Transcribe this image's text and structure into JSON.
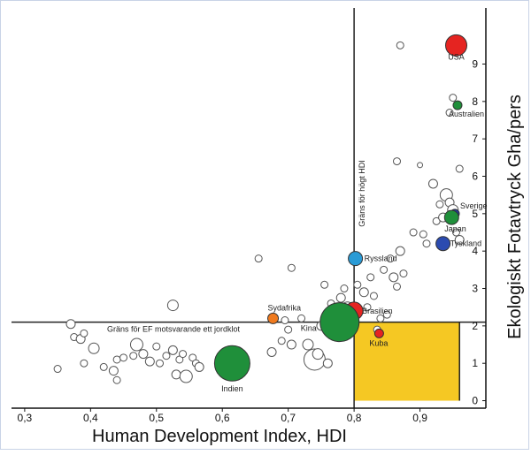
{
  "chart_data": {
    "type": "scatter",
    "xlabel": "Human Development Index, HDI",
    "ylabel": "Ekologiskt Fotavtryck Gha/pers",
    "xlim": [
      0.28,
      1.0
    ],
    "ylim": [
      -0.2,
      10.5
    ],
    "x_ticks": [
      "0,3",
      "0,4",
      "0,5",
      "0,6",
      "0,7",
      "0,8",
      "0,9"
    ],
    "x_tick_values": [
      0.3,
      0.4,
      0.5,
      0.6,
      0.7,
      0.8,
      0.9
    ],
    "y_ticks": [
      "0",
      "1",
      "2",
      "3",
      "4",
      "5",
      "6",
      "7",
      "8",
      "9"
    ],
    "y_tick_values": [
      0,
      1,
      2,
      3,
      4,
      5,
      6,
      7,
      8,
      9
    ],
    "grid": false,
    "reference_lines": [
      {
        "orientation": "vertical",
        "value": 0.8,
        "label": "Gräns för högt HDI"
      },
      {
        "orientation": "horizontal",
        "value": 2.1,
        "label": "Gräns för EF motsvarande ett jordklot"
      }
    ],
    "sustainable_zone": {
      "x": [
        0.8,
        0.96
      ],
      "y": [
        0,
        2.1
      ],
      "color": "#f5c823"
    },
    "highlighted": [
      {
        "label": "USA",
        "x": 0.955,
        "y": 9.5,
        "r": 12,
        "color": "#e52421"
      },
      {
        "label": "Australien",
        "x": 0.957,
        "y": 7.9,
        "r": 5,
        "color": "#1f8f3a"
      },
      {
        "label": "Sverige",
        "x": 0.953,
        "y": 5.0,
        "r": 5,
        "color": "#203a9b"
      },
      {
        "label": "Japan",
        "x": 0.948,
        "y": 4.9,
        "r": 8,
        "color": "#1f8f3a"
      },
      {
        "label": "Tyskland",
        "x": 0.935,
        "y": 4.2,
        "r": 8,
        "color": "#2b4bb0"
      },
      {
        "label": "Ryssland",
        "x": 0.802,
        "y": 3.8,
        "r": 8,
        "color": "#2a9bd6"
      },
      {
        "label": "Brasilien",
        "x": 0.8,
        "y": 2.4,
        "r": 10,
        "color": "#e52421"
      },
      {
        "label": "Kina",
        "x": 0.778,
        "y": 2.1,
        "r": 22,
        "color": "#1f8f3a"
      },
      {
        "label": "Sydafrika",
        "x": 0.677,
        "y": 2.2,
        "r": 6,
        "color": "#f07a1e"
      },
      {
        "label": "Kuba",
        "x": 0.838,
        "y": 1.8,
        "r": 5,
        "color": "#e52421"
      },
      {
        "label": "Indien",
        "x": 0.615,
        "y": 1.0,
        "r": 20,
        "color": "#1f8f3a"
      }
    ],
    "other_countries": [
      [
        0.35,
        0.85,
        4
      ],
      [
        0.37,
        2.05,
        5
      ],
      [
        0.375,
        1.7,
        4
      ],
      [
        0.385,
        1.65,
        5
      ],
      [
        0.39,
        1.8,
        4
      ],
      [
        0.39,
        1.0,
        4
      ],
      [
        0.405,
        1.4,
        6
      ],
      [
        0.42,
        0.9,
        4
      ],
      [
        0.435,
        0.8,
        5
      ],
      [
        0.44,
        1.1,
        4
      ],
      [
        0.44,
        0.55,
        4
      ],
      [
        0.45,
        1.15,
        4
      ],
      [
        0.465,
        1.2,
        4
      ],
      [
        0.47,
        1.5,
        7
      ],
      [
        0.48,
        1.25,
        5
      ],
      [
        0.49,
        1.05,
        5
      ],
      [
        0.5,
        1.45,
        4
      ],
      [
        0.505,
        1.0,
        4
      ],
      [
        0.515,
        1.2,
        4
      ],
      [
        0.525,
        1.35,
        5
      ],
      [
        0.525,
        2.55,
        6
      ],
      [
        0.53,
        0.7,
        5
      ],
      [
        0.535,
        1.1,
        4
      ],
      [
        0.54,
        1.25,
        4
      ],
      [
        0.545,
        0.65,
        7
      ],
      [
        0.555,
        1.15,
        4
      ],
      [
        0.56,
        1.0,
        4
      ],
      [
        0.565,
        0.9,
        5
      ],
      [
        0.655,
        3.8,
        4
      ],
      [
        0.675,
        1.3,
        5
      ],
      [
        0.69,
        1.6,
        4
      ],
      [
        0.695,
        2.15,
        4
      ],
      [
        0.7,
        1.9,
        4
      ],
      [
        0.705,
        1.5,
        5
      ],
      [
        0.705,
        3.55,
        4
      ],
      [
        0.72,
        2.2,
        4
      ],
      [
        0.73,
        1.5,
        6
      ],
      [
        0.74,
        1.1,
        12
      ],
      [
        0.745,
        1.25,
        6
      ],
      [
        0.75,
        2.0,
        5
      ],
      [
        0.755,
        3.1,
        4
      ],
      [
        0.76,
        1.0,
        5
      ],
      [
        0.765,
        2.6,
        4
      ],
      [
        0.77,
        1.75,
        4
      ],
      [
        0.78,
        2.75,
        5
      ],
      [
        0.785,
        3.0,
        4
      ],
      [
        0.79,
        2.5,
        6
      ],
      [
        0.8,
        2.2,
        5
      ],
      [
        0.805,
        3.1,
        4
      ],
      [
        0.815,
        2.9,
        5
      ],
      [
        0.82,
        2.5,
        4
      ],
      [
        0.825,
        3.3,
        4
      ],
      [
        0.83,
        2.8,
        4
      ],
      [
        0.835,
        1.9,
        4
      ],
      [
        0.84,
        2.2,
        4
      ],
      [
        0.845,
        3.5,
        4
      ],
      [
        0.85,
        2.3,
        4
      ],
      [
        0.855,
        3.8,
        4
      ],
      [
        0.86,
        3.3,
        5
      ],
      [
        0.865,
        3.05,
        4
      ],
      [
        0.87,
        4.0,
        5
      ],
      [
        0.875,
        3.4,
        4
      ],
      [
        0.87,
        9.5,
        4
      ],
      [
        0.865,
        6.4,
        4
      ],
      [
        0.89,
        4.5,
        4
      ],
      [
        0.9,
        6.3,
        3
      ],
      [
        0.905,
        4.45,
        4
      ],
      [
        0.91,
        4.2,
        4
      ],
      [
        0.92,
        5.8,
        5
      ],
      [
        0.925,
        4.8,
        4
      ],
      [
        0.93,
        5.25,
        4
      ],
      [
        0.935,
        4.9,
        5
      ],
      [
        0.94,
        5.5,
        7
      ],
      [
        0.945,
        5.3,
        5
      ],
      [
        0.95,
        5.1,
        6
      ],
      [
        0.955,
        4.5,
        4
      ],
      [
        0.96,
        4.3,
        5
      ],
      [
        0.96,
        6.2,
        4
      ],
      [
        0.945,
        7.7,
        4
      ],
      [
        0.95,
        8.1,
        4
      ]
    ]
  }
}
